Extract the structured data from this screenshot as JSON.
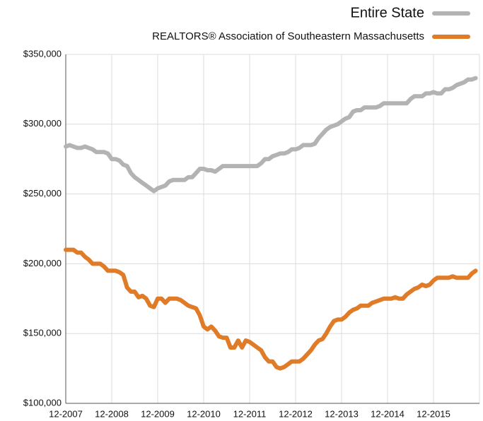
{
  "chart_data": {
    "type": "line",
    "categories": [
      "12-2007",
      null,
      null,
      null,
      null,
      null,
      null,
      null,
      null,
      null,
      null,
      null,
      "12-2008",
      null,
      null,
      null,
      null,
      null,
      null,
      null,
      null,
      null,
      null,
      null,
      "12-2009",
      null,
      null,
      null,
      null,
      null,
      null,
      null,
      null,
      null,
      null,
      null,
      "12-2010",
      null,
      null,
      null,
      null,
      null,
      null,
      null,
      null,
      null,
      null,
      null,
      "12-2011",
      null,
      null,
      null,
      null,
      null,
      null,
      null,
      null,
      null,
      null,
      null,
      "12-2012",
      null,
      null,
      null,
      null,
      null,
      null,
      null,
      null,
      null,
      null,
      null,
      "12-2013",
      null,
      null,
      null,
      null,
      null,
      null,
      null,
      null,
      null,
      null,
      null,
      "12-2014",
      null,
      null,
      null,
      null,
      null,
      null,
      null,
      null,
      null,
      null,
      null,
      "12-2015",
      null,
      null,
      null,
      null,
      null,
      null,
      null,
      null,
      null,
      null,
      null
    ],
    "series": [
      {
        "name": "Entire State",
        "color": "#b3b3b3",
        "values": [
          284000,
          285000,
          284000,
          283000,
          283000,
          284000,
          283000,
          282000,
          280000,
          280000,
          280000,
          279000,
          275000,
          275000,
          274000,
          271000,
          270000,
          265000,
          262000,
          260000,
          258000,
          256000,
          254000,
          252000,
          254000,
          255000,
          256000,
          259000,
          260000,
          260000,
          260000,
          260000,
          262000,
          262000,
          265000,
          268000,
          268000,
          267000,
          267000,
          266000,
          268000,
          270000,
          270000,
          270000,
          270000,
          270000,
          270000,
          270000,
          270000,
          270000,
          270000,
          272000,
          275000,
          275000,
          277000,
          278000,
          279000,
          279000,
          280000,
          282000,
          282000,
          283000,
          285000,
          285000,
          285000,
          286000,
          290000,
          293000,
          296000,
          298000,
          299000,
          300000,
          302000,
          304000,
          305000,
          309000,
          310000,
          310000,
          312000,
          312000,
          312000,
          312000,
          313000,
          315000,
          315000,
          315000,
          315000,
          315000,
          315000,
          315000,
          318000,
          320000,
          320000,
          320000,
          322000,
          322000,
          323000,
          322000,
          322000,
          325000,
          325000,
          326000,
          328000,
          329000,
          330000,
          332000,
          332000,
          333000
        ]
      },
      {
        "name": "REALTORS® Association of Southeastern Massachusetts",
        "color": "#e07b27",
        "values": [
          210000,
          210000,
          210000,
          208000,
          208000,
          205000,
          203000,
          200000,
          200000,
          200000,
          198000,
          195000,
          195000,
          195000,
          194000,
          192000,
          183000,
          180000,
          180000,
          176000,
          177000,
          175000,
          170000,
          169000,
          175000,
          175000,
          172000,
          175000,
          175000,
          175000,
          174000,
          172000,
          170000,
          169000,
          168000,
          163000,
          155000,
          153000,
          155000,
          152000,
          148000,
          147000,
          147000,
          140000,
          140000,
          145000,
          140000,
          145000,
          144000,
          142000,
          140000,
          138000,
          133000,
          130000,
          130000,
          126000,
          125000,
          126000,
          128000,
          130000,
          130000,
          130000,
          132000,
          135000,
          138000,
          142000,
          145000,
          146000,
          150000,
          155000,
          159000,
          160000,
          160000,
          162000,
          165000,
          167000,
          168000,
          170000,
          170000,
          170000,
          172000,
          173000,
          174000,
          175000,
          175000,
          175000,
          176000,
          175000,
          175000,
          178000,
          180000,
          182000,
          183000,
          185000,
          184000,
          185000,
          188000,
          190000,
          190000,
          190000,
          190000,
          191000,
          190000,
          190000,
          190000,
          190000,
          193000,
          195000
        ]
      }
    ],
    "ylim": [
      100000,
      350000
    ],
    "yticks": [
      {
        "value": 100000,
        "label": "$100,000"
      },
      {
        "value": 150000,
        "label": "$150,000"
      },
      {
        "value": 200000,
        "label": "$200,000"
      },
      {
        "value": 250000,
        "label": "$250,000"
      },
      {
        "value": 300000,
        "label": "$300,000"
      },
      {
        "value": 350000,
        "label": "$350,000"
      }
    ],
    "grid": true
  }
}
